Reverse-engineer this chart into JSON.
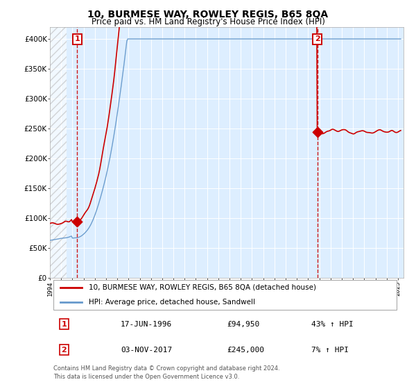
{
  "title": "10, BURMESE WAY, ROWLEY REGIS, B65 8QA",
  "subtitle": "Price paid vs. HM Land Registry's House Price Index (HPI)",
  "legend_line1": "10, BURMESE WAY, ROWLEY REGIS, B65 8QA (detached house)",
  "legend_line2": "HPI: Average price, detached house, Sandwell",
  "annotation1_date": "17-JUN-1996",
  "annotation1_price": "£94,950",
  "annotation1_hpi": "43% ↑ HPI",
  "annotation2_date": "03-NOV-2017",
  "annotation2_price": "£245,000",
  "annotation2_hpi": "7% ↑ HPI",
  "footer": "Contains HM Land Registry data © Crown copyright and database right 2024.\nThis data is licensed under the Open Government Licence v3.0.",
  "red_color": "#cc0000",
  "blue_color": "#6699cc",
  "bg_color": "#ddeeff",
  "yticks": [
    0,
    50000,
    100000,
    150000,
    200000,
    250000,
    300000,
    350000,
    400000
  ],
  "ylim": [
    0,
    420000
  ],
  "purchase1_year": 1996.46,
  "purchase1_price": 94950,
  "purchase2_year": 2017.84,
  "purchase2_price": 245000
}
